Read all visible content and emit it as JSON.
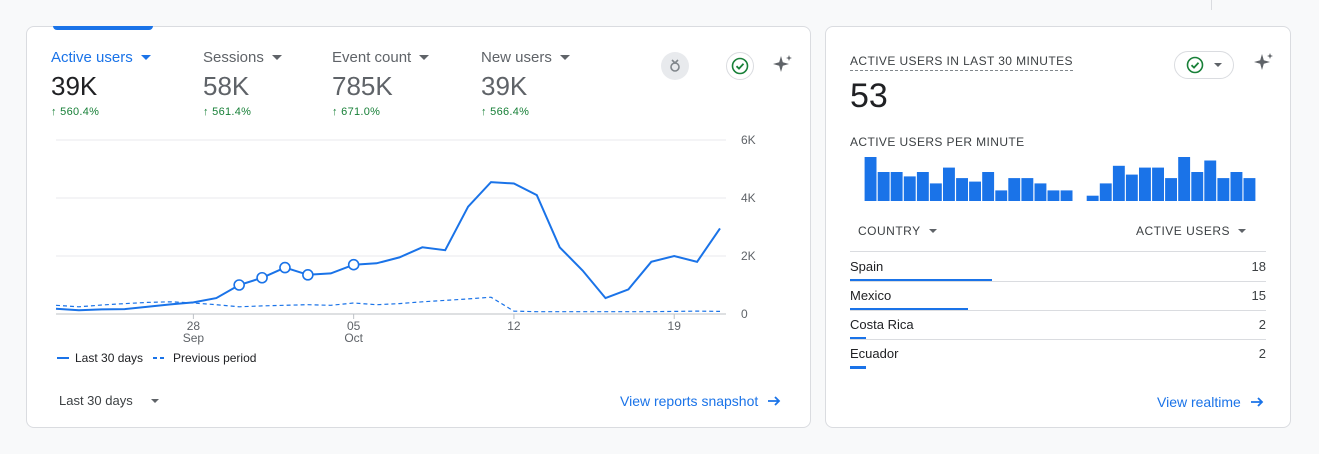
{
  "overview": {
    "metrics": [
      {
        "label": "Active users",
        "value": "39K",
        "change": "↑ 560.4%",
        "active": true
      },
      {
        "label": "Sessions",
        "value": "58K",
        "change": "↑ 561.4%",
        "active": false
      },
      {
        "label": "Event count",
        "value": "785K",
        "change": "↑ 671.0%",
        "active": false
      },
      {
        "label": "New users",
        "value": "39K",
        "change": "↑ 566.4%",
        "active": false
      }
    ],
    "legend": {
      "current": "Last 30 days",
      "previous": "Previous period"
    },
    "range_label": "Last 30 days",
    "link_label": "View reports snapshot",
    "icons": [
      "insights-badge-icon",
      "check-circle-icon",
      "sparkle-icon",
      "arrow-right-icon"
    ]
  },
  "chart_data": {
    "type": "line",
    "x": [
      22,
      23,
      24,
      25,
      26,
      27,
      28,
      29,
      30,
      1,
      2,
      3,
      4,
      5,
      6,
      7,
      8,
      9,
      10,
      11,
      12,
      13,
      14,
      15,
      16,
      17,
      18,
      19,
      20,
      21
    ],
    "x_tick_labels": [
      "28\nSep",
      "05\nOct",
      "12",
      "19"
    ],
    "y_tick_labels": [
      "6K",
      "4K",
      "2K",
      "0"
    ],
    "ylim": [
      0,
      6000
    ],
    "series": [
      {
        "name": "Last 30 days",
        "style": "solid",
        "values": [
          180,
          130,
          160,
          170,
          250,
          330,
          400,
          550,
          1000,
          1250,
          1600,
          1350,
          1400,
          1700,
          1750,
          1950,
          2300,
          2200,
          3700,
          4550,
          4500,
          4100,
          2300,
          1500,
          550,
          850,
          1800,
          2000,
          1800,
          2950
        ]
      },
      {
        "name": "Previous period",
        "style": "dashed",
        "values": [
          300,
          250,
          310,
          360,
          400,
          420,
          380,
          320,
          250,
          280,
          300,
          320,
          300,
          380,
          320,
          360,
          420,
          470,
          520,
          580,
          100,
          80,
          80,
          80,
          80,
          80,
          80,
          90,
          100,
          90
        ]
      }
    ],
    "markers_on_solid_at_index": [
      8,
      9,
      10,
      11,
      13
    ],
    "grid": true
  },
  "realtime": {
    "title": "ACTIVE USERS IN LAST 30 MINUTES",
    "value": "53",
    "per_minute_label": "ACTIVE USERS PER MINUTE",
    "per_minute_values": [
      5,
      3.3,
      3.3,
      2.8,
      3.3,
      2,
      3.8,
      2.6,
      2.2,
      3.3,
      1.2,
      2.6,
      2.6,
      2,
      1.2,
      1.2,
      0,
      0.6,
      2,
      4,
      3,
      3.8,
      3.8,
      2.6,
      5,
      3.3,
      4.6,
      2.6,
      3.3,
      2.6
    ],
    "table": {
      "col_country": "COUNTRY",
      "col_users": "ACTIVE USERS",
      "rows": [
        {
          "country": "Spain",
          "users": "18",
          "share": 1.0
        },
        {
          "country": "Mexico",
          "users": "15",
          "share": 0.83
        },
        {
          "country": "Costa Rica",
          "users": "2",
          "share": 0.11
        },
        {
          "country": "Ecuador",
          "users": "2",
          "share": 0.11
        }
      ]
    },
    "link_label": "View realtime"
  },
  "colors": {
    "accent": "#1a73e8",
    "positive": "#188038",
    "grid": "#e8eaed"
  }
}
